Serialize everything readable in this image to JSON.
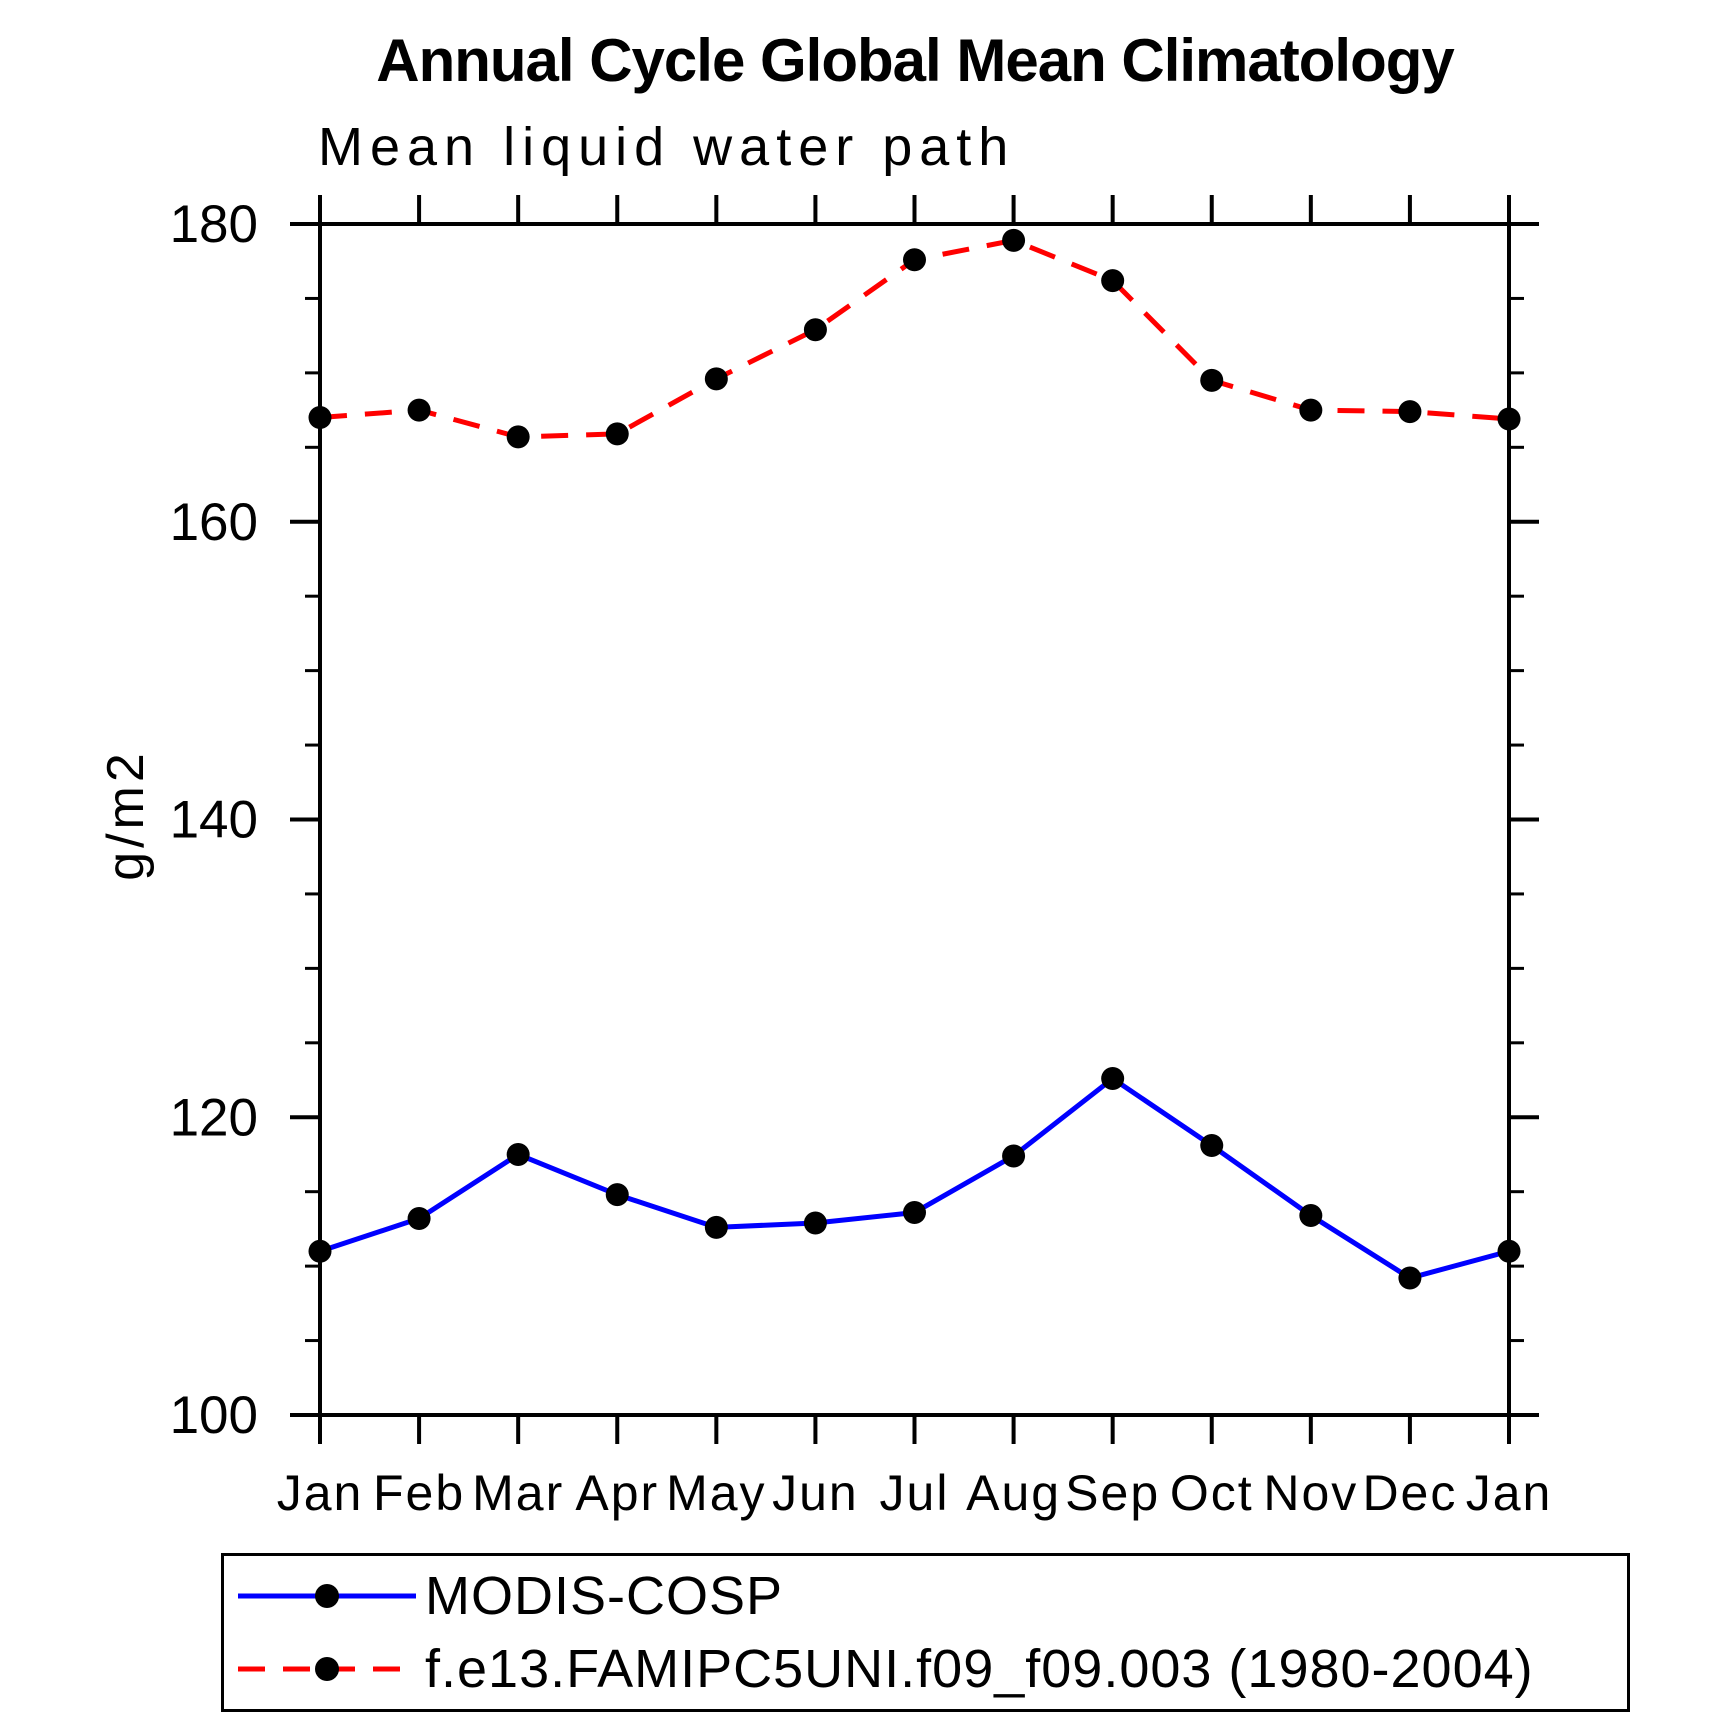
{
  "chart_data": {
    "type": "line",
    "title": "Annual Cycle Global Mean Climatology",
    "subtitle": "Mean liquid water path",
    "ylabel": "g/m2",
    "xlabel": "",
    "x_tick_labels": [
      "Jan",
      "Feb",
      "Mar",
      "Apr",
      "May",
      "Jun",
      "Jul",
      "Aug",
      "Sep",
      "Oct",
      "Nov",
      "Dec",
      "Jan"
    ],
    "ylim": [
      100,
      180
    ],
    "y_major_ticks": [
      180,
      160,
      140,
      120,
      100
    ],
    "y_minor_step": 5,
    "grid": false,
    "legend_position": "bottom",
    "axis_color": "#000000",
    "marker_color": "#000000",
    "series": [
      {
        "name": "MODIS-COSP",
        "color": "#0000ff",
        "line_style": "solid",
        "marker": "filled-circle",
        "marker_color": "#000000",
        "values": [
          111.0,
          113.2,
          117.5,
          114.8,
          112.6,
          112.9,
          113.6,
          117.4,
          122.6,
          118.1,
          113.4,
          109.2,
          111.0
        ]
      },
      {
        "name": "f.e13.FAMIPC5UNI.f09_f09.003 (1980-2004)",
        "color": "#ff0000",
        "line_style": "dashed",
        "marker": "filled-circle",
        "marker_color": "#000000",
        "values": [
          167.0,
          167.5,
          165.7,
          165.9,
          169.6,
          172.9,
          177.6,
          178.9,
          176.2,
          169.5,
          167.5,
          167.4,
          166.9
        ]
      }
    ]
  }
}
